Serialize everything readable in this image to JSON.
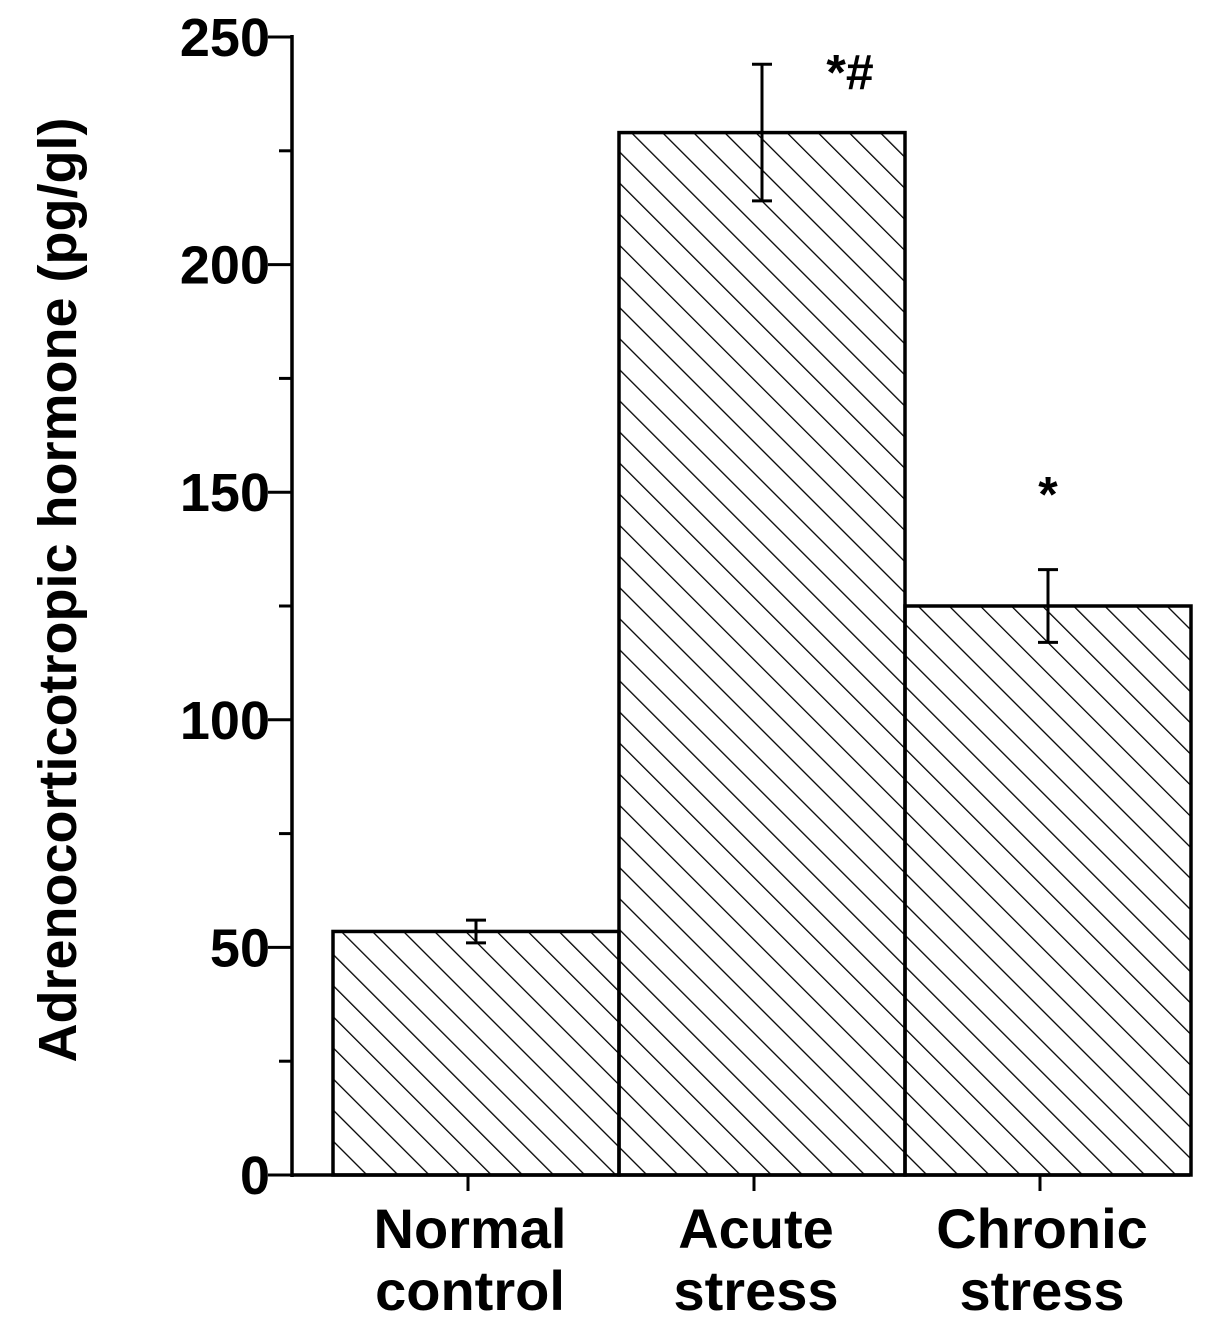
{
  "chart_data": {
    "type": "bar",
    "ylabel": "Adrenocorticotropic hormone (pg/gl)",
    "xlabel": "",
    "ylim": [
      0,
      250
    ],
    "y_major_ticks": [
      0,
      50,
      100,
      150,
      200,
      250
    ],
    "y_minor_step": 25,
    "grid": false,
    "fill_pattern": "diagonal-hatch",
    "categories": [
      [
        "Normal",
        "control"
      ],
      [
        "Acute",
        "stress"
      ],
      [
        "Chronic",
        "stress"
      ]
    ],
    "values": [
      53.5,
      229,
      125
    ],
    "errors": [
      2.5,
      15,
      8
    ],
    "annotations": [
      "",
      "*#",
      "*"
    ],
    "colors": {
      "axis": "#000000",
      "bar_fill": "#ffffff",
      "hatch": "#000000"
    }
  }
}
